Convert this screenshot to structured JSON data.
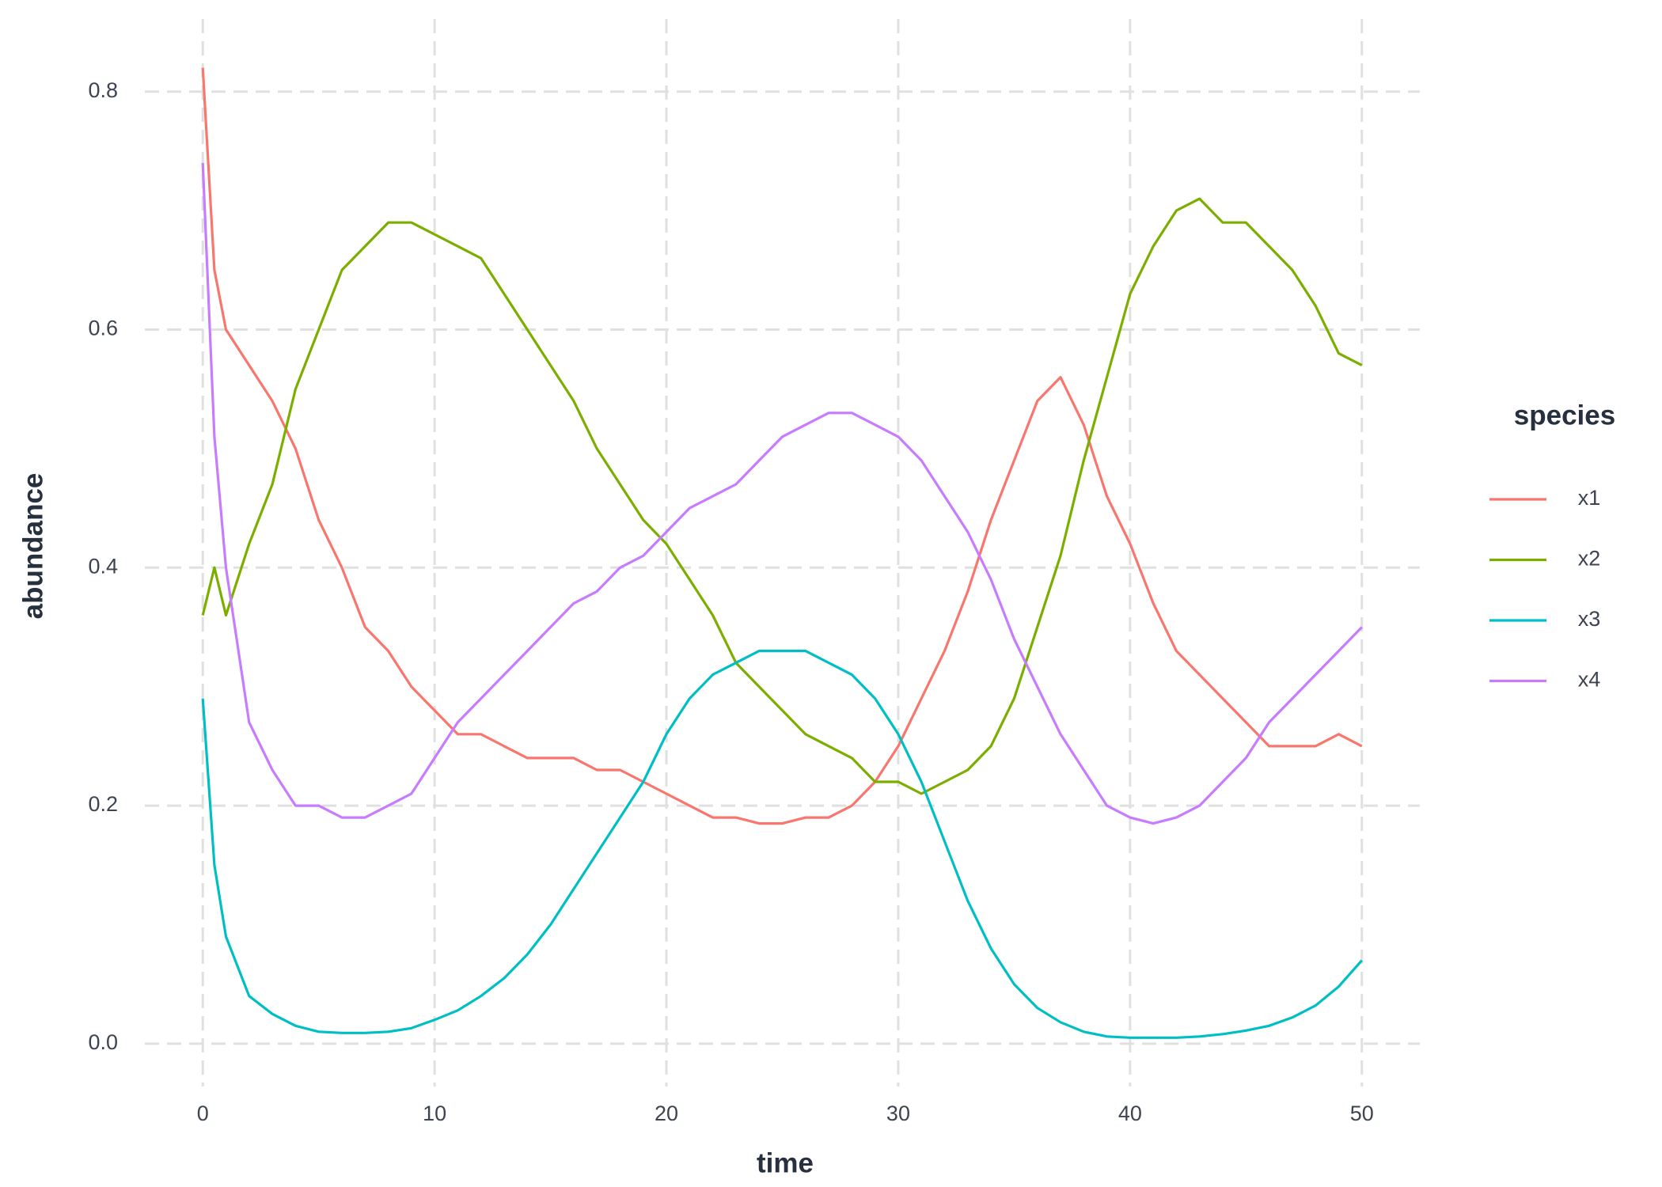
{
  "chart_data": {
    "type": "line",
    "x_label": "time",
    "y_label": "abundance",
    "legend_title": "species",
    "legend_position": "right",
    "grid": true,
    "x": [
      0,
      0.5,
      1,
      2,
      3,
      4,
      5,
      6,
      7,
      8,
      9,
      10,
      11,
      12,
      13,
      14,
      15,
      16,
      17,
      18,
      19,
      20,
      21,
      22,
      23,
      24,
      25,
      26,
      27,
      28,
      29,
      30,
      31,
      32,
      33,
      34,
      35,
      36,
      37,
      38,
      39,
      40,
      41,
      42,
      43,
      44,
      45,
      46,
      47,
      48,
      49,
      50
    ],
    "series": [
      {
        "name": "x1",
        "color": "#F8766D",
        "values": [
          0.82,
          0.65,
          0.6,
          0.57,
          0.54,
          0.5,
          0.44,
          0.4,
          0.35,
          0.33,
          0.3,
          0.28,
          0.26,
          0.26,
          0.25,
          0.24,
          0.24,
          0.24,
          0.23,
          0.23,
          0.22,
          0.21,
          0.2,
          0.19,
          0.19,
          0.185,
          0.185,
          0.19,
          0.19,
          0.2,
          0.22,
          0.25,
          0.29,
          0.33,
          0.38,
          0.44,
          0.49,
          0.54,
          0.56,
          0.52,
          0.46,
          0.42,
          0.37,
          0.33,
          0.31,
          0.29,
          0.27,
          0.25,
          0.25,
          0.25,
          0.26,
          0.25
        ]
      },
      {
        "name": "x2",
        "color": "#7CAE00",
        "values": [
          0.36,
          0.4,
          0.36,
          0.42,
          0.47,
          0.55,
          0.6,
          0.65,
          0.67,
          0.69,
          0.69,
          0.68,
          0.67,
          0.66,
          0.63,
          0.6,
          0.57,
          0.54,
          0.5,
          0.47,
          0.44,
          0.42,
          0.39,
          0.36,
          0.32,
          0.3,
          0.28,
          0.26,
          0.25,
          0.24,
          0.22,
          0.22,
          0.21,
          0.22,
          0.23,
          0.25,
          0.29,
          0.35,
          0.41,
          0.49,
          0.56,
          0.63,
          0.67,
          0.7,
          0.71,
          0.69,
          0.69,
          0.67,
          0.65,
          0.62,
          0.58,
          0.57
        ]
      },
      {
        "name": "x3",
        "color": "#00BFC4",
        "values": [
          0.29,
          0.15,
          0.09,
          0.04,
          0.025,
          0.015,
          0.01,
          0.009,
          0.009,
          0.01,
          0.013,
          0.02,
          0.028,
          0.04,
          0.055,
          0.075,
          0.1,
          0.13,
          0.16,
          0.19,
          0.22,
          0.26,
          0.29,
          0.31,
          0.32,
          0.33,
          0.33,
          0.33,
          0.32,
          0.31,
          0.29,
          0.26,
          0.22,
          0.17,
          0.12,
          0.08,
          0.05,
          0.03,
          0.018,
          0.01,
          0.006,
          0.005,
          0.005,
          0.005,
          0.006,
          0.008,
          0.011,
          0.015,
          0.022,
          0.032,
          0.048,
          0.07
        ]
      },
      {
        "name": "x4",
        "color": "#C77CFF",
        "values": [
          0.74,
          0.51,
          0.4,
          0.27,
          0.23,
          0.2,
          0.2,
          0.19,
          0.19,
          0.2,
          0.21,
          0.24,
          0.27,
          0.29,
          0.31,
          0.33,
          0.35,
          0.37,
          0.38,
          0.4,
          0.41,
          0.43,
          0.45,
          0.46,
          0.47,
          0.49,
          0.51,
          0.52,
          0.53,
          0.53,
          0.52,
          0.51,
          0.49,
          0.46,
          0.43,
          0.39,
          0.34,
          0.3,
          0.26,
          0.23,
          0.2,
          0.19,
          0.185,
          0.19,
          0.2,
          0.22,
          0.24,
          0.27,
          0.29,
          0.31,
          0.33,
          0.35
        ]
      }
    ],
    "xlim": [
      -2.5,
      52.5
    ],
    "xticks": [
      0,
      10,
      20,
      30,
      40,
      50
    ],
    "ylim": [
      -0.036,
      0.861
    ],
    "yticks": [
      {
        "value": 0,
        "label": "0.0"
      },
      0.2,
      0.4,
      0.6,
      0.8
    ]
  }
}
